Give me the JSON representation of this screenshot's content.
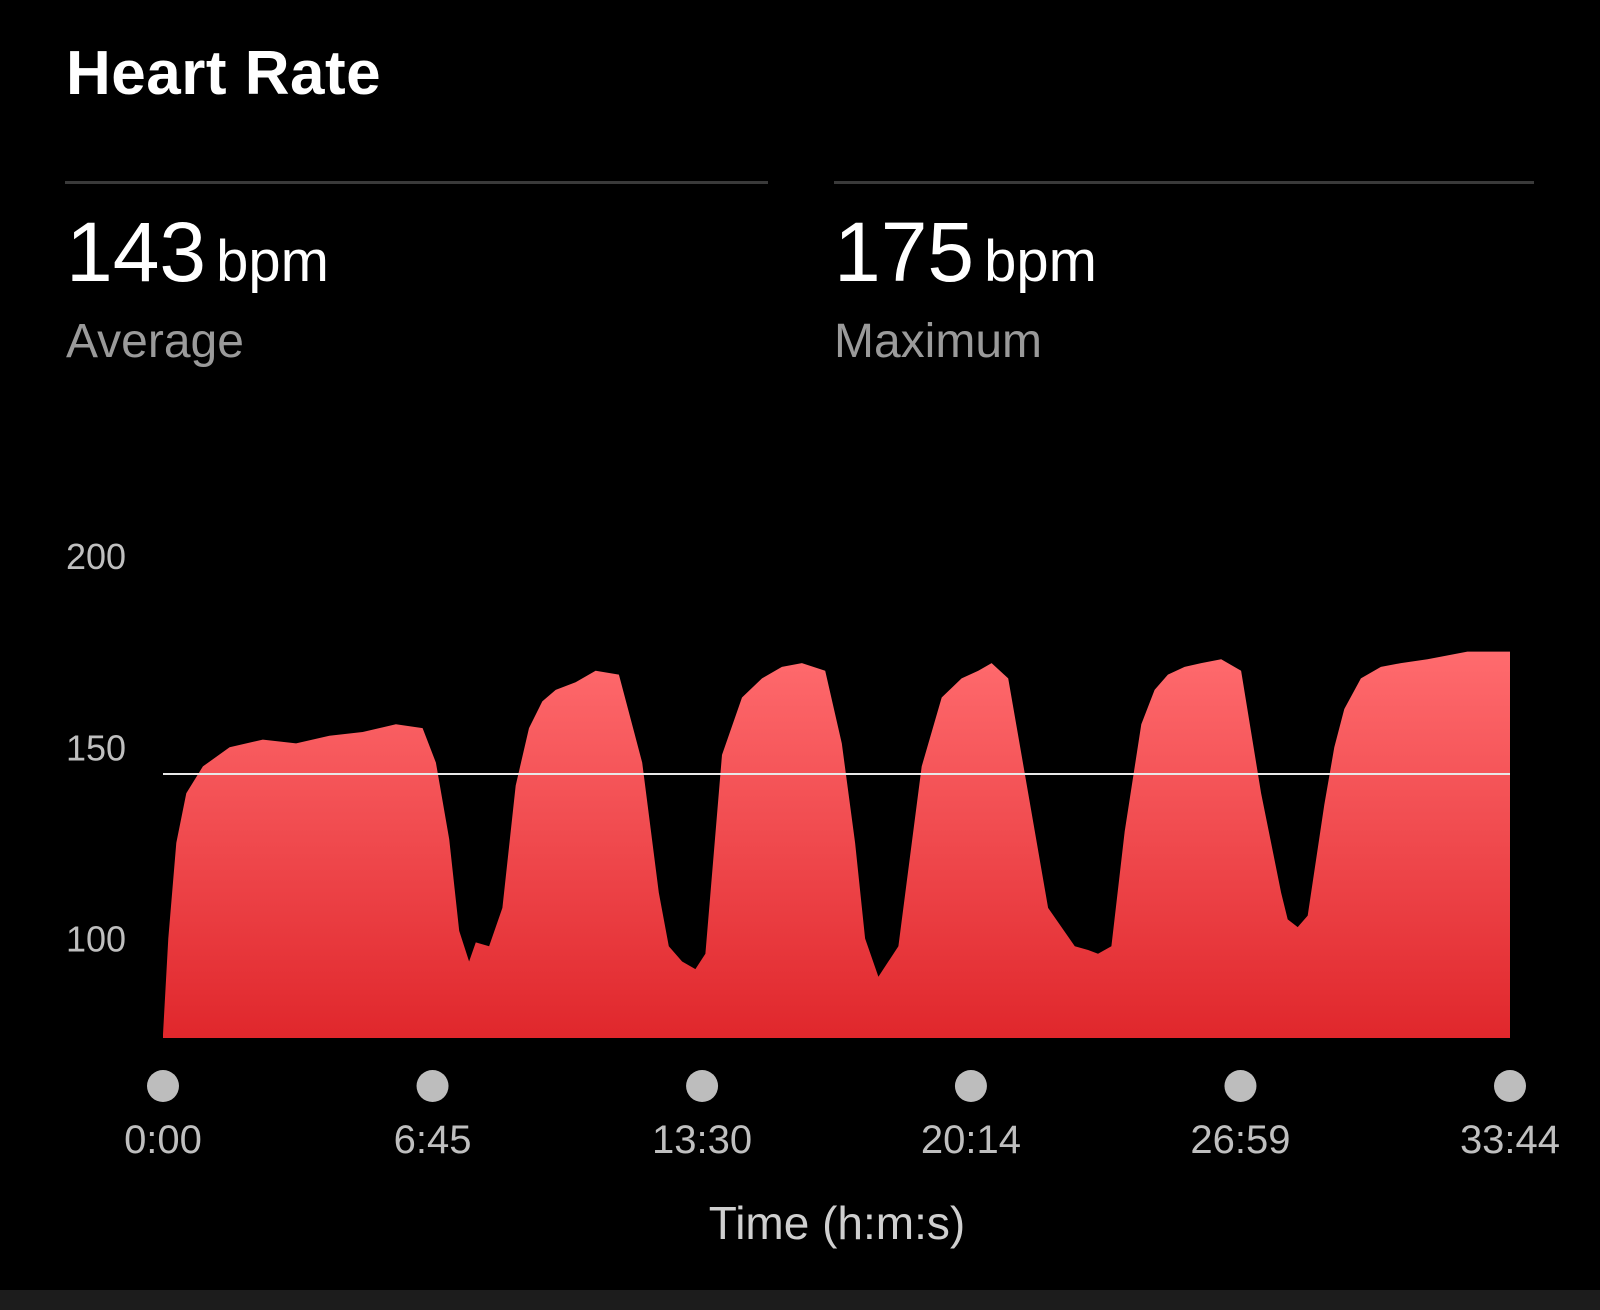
{
  "header": {
    "title": "Heart Rate"
  },
  "stats": [
    {
      "value": "143",
      "unit": "bpm",
      "label": "Average"
    },
    {
      "value": "175",
      "unit": "bpm",
      "label": "Maximum"
    }
  ],
  "colors": {
    "background": "#000000",
    "fill_top": "#ff6b6e",
    "fill_bottom": "#e0272c",
    "tick_dot": "#bdbdbd",
    "reference_line": "#e8e8e8"
  },
  "chart_data": {
    "type": "area",
    "xlabel": "Time (h:m:s)",
    "ylabel": "",
    "x_unit": "seconds",
    "xlim": [
      0,
      2024
    ],
    "ylim": [
      74,
      200
    ],
    "y_ticks": [
      {
        "value": 200,
        "label": "200"
      },
      {
        "value": 150,
        "label": "150"
      },
      {
        "value": 100,
        "label": "100"
      }
    ],
    "x_ticks": [
      {
        "value": 0,
        "label": "0:00"
      },
      {
        "value": 405,
        "label": "6:45"
      },
      {
        "value": 810,
        "label": "13:30"
      },
      {
        "value": 1214,
        "label": "20:14"
      },
      {
        "value": 1619,
        "label": "26:59"
      },
      {
        "value": 2024,
        "label": "33:44"
      }
    ],
    "reference_line": {
      "y": 143,
      "label": ""
    },
    "series": [
      {
        "x": [
          0,
          8,
          20,
          35,
          60,
          100,
          150,
          200,
          250,
          300,
          350,
          390,
          410,
          430,
          445,
          460,
          470,
          490,
          510,
          530,
          550,
          570,
          590,
          620,
          650,
          685,
          720,
          745,
          760,
          780,
          800,
          815,
          840,
          870,
          900,
          930,
          960,
          995,
          1020,
          1040,
          1055,
          1075,
          1105,
          1140,
          1170,
          1200,
          1225,
          1245,
          1270,
          1300,
          1330,
          1370,
          1390,
          1405,
          1425,
          1445,
          1470,
          1490,
          1510,
          1535,
          1560,
          1590,
          1620,
          1650,
          1680,
          1690,
          1705,
          1720,
          1745,
          1760,
          1775,
          1800,
          1830,
          1860,
          1900,
          1960,
          2024
        ],
        "values": [
          75,
          100,
          125,
          138,
          145,
          150,
          152,
          151,
          153,
          154,
          156,
          155,
          146,
          126,
          102,
          94,
          99,
          98,
          108,
          140,
          155,
          162,
          165,
          167,
          170,
          169,
          146,
          112,
          98,
          94,
          92,
          96,
          148,
          163,
          168,
          171,
          172,
          170,
          151,
          125,
          100,
          90,
          98,
          145,
          163,
          168,
          170,
          172,
          168,
          138,
          108,
          98,
          97,
          96,
          98,
          128,
          156,
          165,
          169,
          171,
          172,
          173,
          170,
          138,
          112,
          105,
          103,
          106,
          135,
          150,
          160,
          168,
          171,
          172,
          173,
          175,
          175
        ]
      }
    ]
  }
}
